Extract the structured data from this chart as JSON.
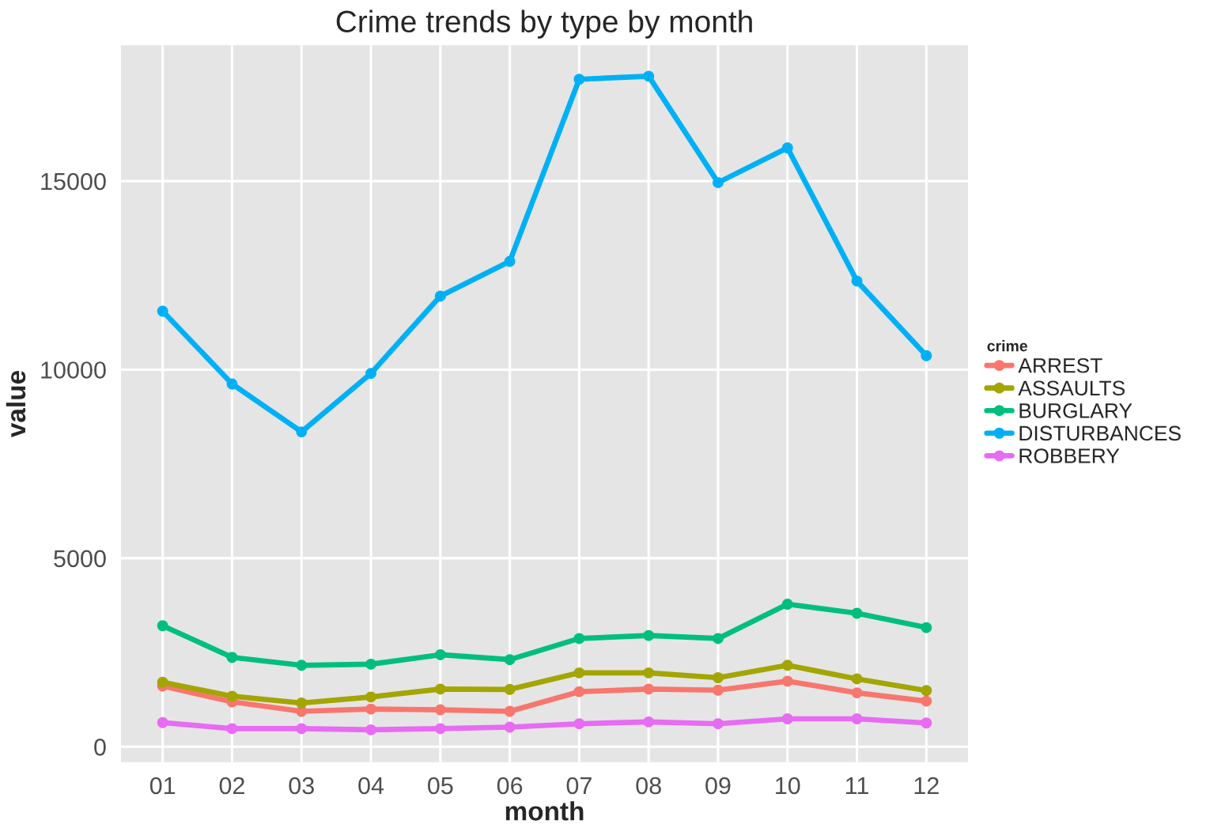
{
  "chart_data": {
    "type": "line",
    "title": "Crime trends by type by month",
    "xlabel": "month",
    "ylabel": "value",
    "legend_title": "crime",
    "categories": [
      "01",
      "02",
      "03",
      "04",
      "05",
      "06",
      "07",
      "08",
      "09",
      "10",
      "11",
      "12"
    ],
    "series": [
      {
        "name": "ARREST",
        "color": "#f8766d",
        "values": [
          1610,
          1190,
          940,
          1000,
          980,
          940,
          1460,
          1530,
          1500,
          1740,
          1430,
          1210
        ]
      },
      {
        "name": "ASSAULTS",
        "color": "#a3a500",
        "values": [
          1710,
          1340,
          1160,
          1320,
          1530,
          1520,
          1960,
          1960,
          1830,
          2160,
          1800,
          1490
        ]
      },
      {
        "name": "BURGLARY",
        "color": "#00bf7d",
        "values": [
          3210,
          2370,
          2160,
          2190,
          2440,
          2310,
          2870,
          2950,
          2870,
          3780,
          3540,
          3160
        ]
      },
      {
        "name": "DISTURBANCES",
        "color": "#00b0f6",
        "values": [
          11550,
          9620,
          8350,
          9900,
          11950,
          12870,
          17700,
          17780,
          14960,
          15880,
          12350,
          10370
        ]
      },
      {
        "name": "ROBBERY",
        "color": "#e76bf3",
        "values": [
          640,
          480,
          480,
          450,
          480,
          520,
          610,
          660,
          610,
          740,
          740,
          630
        ]
      }
    ],
    "ylim": [
      -410,
      18600
    ],
    "yticks": [
      0,
      5000,
      10000,
      15000
    ],
    "grid": true,
    "legend": "right",
    "marker": "circle",
    "line_style": "solid"
  }
}
